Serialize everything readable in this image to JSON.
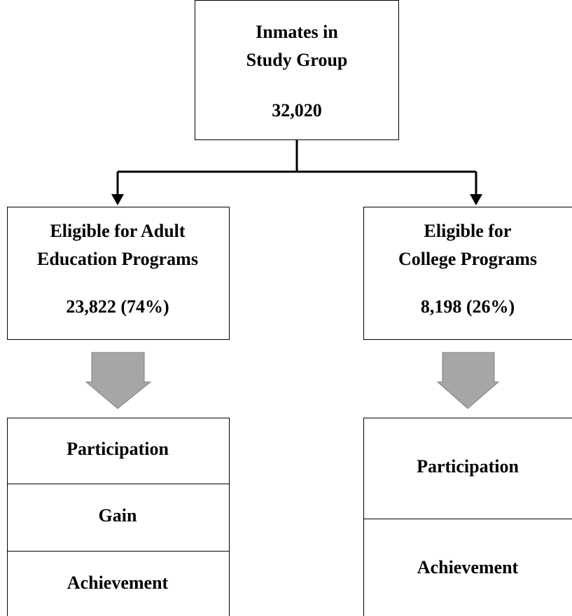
{
  "nodes": [
    {
      "lines": [
        "Inmates in",
        "Study Group"
      ],
      "count": "32,020"
    },
    {
      "lines": [
        "Eligible for Adult",
        "Education Programs"
      ],
      "count": "23,822 (74%)",
      "outcomes": [
        "Participation",
        "Gain",
        "Achievement"
      ]
    },
    {
      "lines": [
        "Eligible for",
        "College Programs"
      ],
      "count": "8,198 (26%)",
      "outcomes": [
        "Participation",
        "Achievement"
      ]
    }
  ]
}
